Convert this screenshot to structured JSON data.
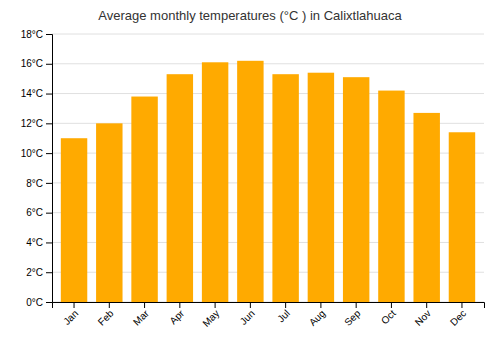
{
  "chart_data": {
    "type": "bar",
    "title": "Average monthly temperatures (°C ) in Calixtlahuaca",
    "categories": [
      "Jan",
      "Feb",
      "Mar",
      "Apr",
      "May",
      "Jun",
      "Jul",
      "Aug",
      "Sep",
      "Oct",
      "Nov",
      "Dec"
    ],
    "values": [
      11.0,
      12.0,
      13.8,
      15.3,
      16.1,
      16.2,
      15.3,
      15.4,
      15.1,
      14.2,
      12.7,
      11.4
    ],
    "color": "#FFAA00",
    "ylim": [
      0,
      18
    ],
    "yticks": [
      {
        "value": 0,
        "label": "0°C"
      },
      {
        "value": 2,
        "label": "2°C"
      },
      {
        "value": 4,
        "label": "4°C"
      },
      {
        "value": 6,
        "label": "6°C"
      },
      {
        "value": 8,
        "label": "8°C"
      },
      {
        "value": 10,
        "label": "10°C"
      },
      {
        "value": 12,
        "label": "12°C"
      },
      {
        "value": 14,
        "label": "14°C"
      },
      {
        "value": 16,
        "label": "16°C"
      },
      {
        "value": 18,
        "label": "18°C"
      }
    ],
    "grid": true
  }
}
